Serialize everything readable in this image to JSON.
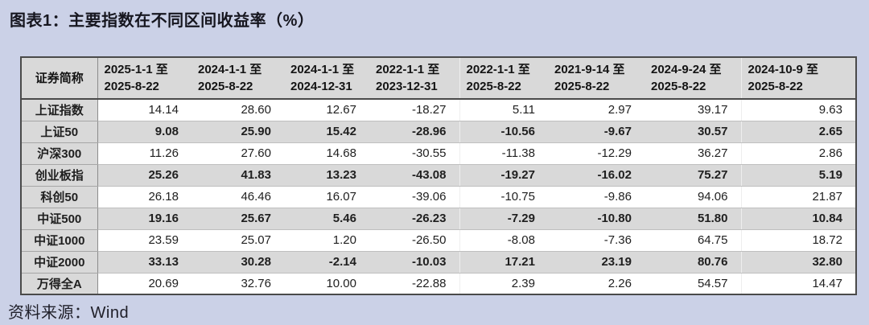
{
  "page": {
    "title": "图表1：主要指数在不同区间收益率（%）",
    "source": "资料来源：Wind"
  },
  "colors": {
    "page_background": "#cbd1e7",
    "table_header_background": "#d9d9d9",
    "shaded_row_background": "#d9d9d9",
    "table_border": "#4a4a4a",
    "text": "#141414"
  },
  "chart_data": {
    "type": "table",
    "title": "主要指数在不同区间收益率（%）",
    "row_header": "证券简称",
    "columns": [
      "2025-1-1 至\n2025-8-22",
      "2024-1-1 至\n2025-8-22",
      "2024-1-1 至\n2024-12-31",
      "2022-1-1 至\n2023-12-31",
      "2022-1-1 至\n2025-8-22",
      "2021-9-14 至\n2025-8-22",
      "2024-9-24 至\n2025-8-22",
      "2024-10-9 至\n2025-8-22"
    ],
    "rows": [
      {
        "name": "上证指数",
        "values": [
          14.14,
          28.6,
          12.67,
          -18.27,
          5.11,
          2.97,
          39.17,
          9.63
        ]
      },
      {
        "name": "上证50",
        "values": [
          9.08,
          25.9,
          15.42,
          -28.96,
          -10.56,
          -9.67,
          30.57,
          2.65
        ]
      },
      {
        "name": "沪深300",
        "values": [
          11.26,
          27.6,
          14.68,
          -30.55,
          -11.38,
          -12.29,
          36.27,
          2.86
        ]
      },
      {
        "name": "创业板指",
        "values": [
          25.26,
          41.83,
          13.23,
          -43.08,
          -19.27,
          -16.02,
          75.27,
          5.19
        ]
      },
      {
        "name": "科创50",
        "values": [
          26.18,
          46.46,
          16.07,
          -39.06,
          -10.75,
          -9.86,
          94.06,
          21.87
        ]
      },
      {
        "name": "中证500",
        "values": [
          19.16,
          25.67,
          5.46,
          -26.23,
          -7.29,
          -10.8,
          51.8,
          10.84
        ]
      },
      {
        "name": "中证1000",
        "values": [
          23.59,
          25.07,
          1.2,
          -26.5,
          -8.08,
          -7.36,
          64.75,
          18.72
        ]
      },
      {
        "name": "中证2000",
        "values": [
          33.13,
          30.28,
          -2.14,
          -10.03,
          17.21,
          23.19,
          80.76,
          32.8
        ]
      },
      {
        "name": "万得全A",
        "values": [
          20.69,
          32.76,
          10.0,
          -22.88,
          2.39,
          2.26,
          54.57,
          14.47
        ]
      }
    ]
  }
}
